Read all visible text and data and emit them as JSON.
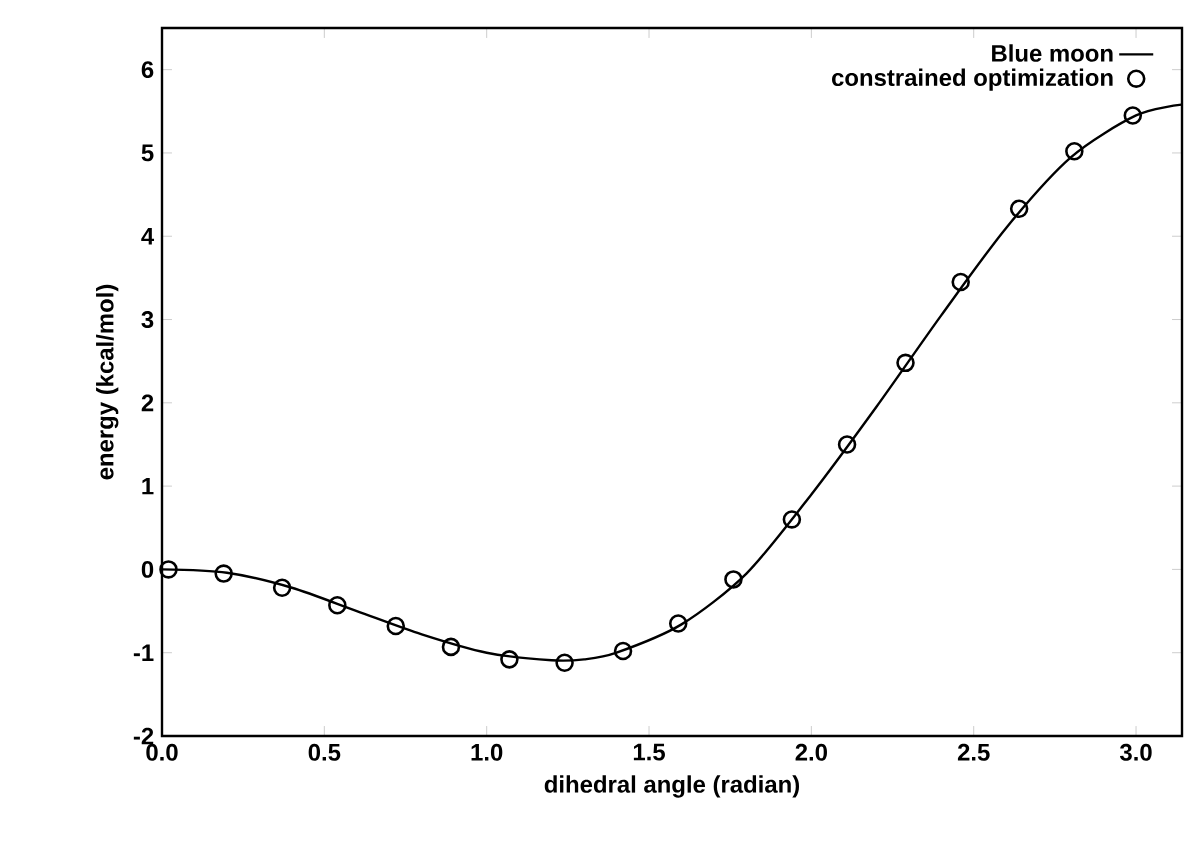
{
  "chart_data": {
    "type": "line",
    "xlabel": "dihedral angle (radian)",
    "ylabel": "energy (kcal/mol)",
    "xlim": [
      0,
      3.1416
    ],
    "ylim": [
      -2,
      6.5
    ],
    "xticks": [
      {
        "value": 0,
        "label": "0.0"
      },
      0.5,
      {
        "value": 1,
        "label": "1.0"
      },
      1.5,
      {
        "value": 2,
        "label": "2.0"
      },
      2.5,
      {
        "value": 3,
        "label": "3.0"
      }
    ],
    "yticks": [
      -2,
      -1,
      0,
      1,
      2,
      3,
      4,
      5,
      6
    ],
    "legend": "top right",
    "grid": false,
    "series": [
      {
        "name": "Blue moon",
        "color": "#000000",
        "marker": "none",
        "line_style": "solid",
        "x": [
          0,
          0.2,
          0.4,
          0.6,
          0.8,
          1.0,
          1.2,
          1.3,
          1.4,
          1.6,
          1.8,
          2.0,
          2.2,
          2.4,
          2.6,
          2.8,
          3.0,
          3.14
        ],
        "values": [
          0,
          -0.04,
          -0.22,
          -0.5,
          -0.78,
          -1.0,
          -1.09,
          -1.08,
          -1.0,
          -0.66,
          -0.05,
          0.9,
          1.95,
          3.05,
          4.1,
          4.95,
          5.45,
          5.58
        ]
      },
      {
        "name": "constrained optimization",
        "type": "scatter",
        "color": "#000000",
        "marker": "circle",
        "x": [
          0.02,
          0.19,
          0.37,
          0.54,
          0.72,
          0.89,
          1.07,
          1.24,
          1.42,
          1.59,
          1.76,
          1.94,
          2.11,
          2.29,
          2.46,
          2.64,
          2.81,
          2.99
        ],
        "values": [
          0,
          -0.05,
          -0.22,
          -0.43,
          -0.68,
          -0.93,
          -1.08,
          -1.12,
          -0.98,
          -0.65,
          -0.12,
          0.6,
          1.5,
          2.48,
          3.45,
          4.33,
          5.02,
          5.45
        ]
      }
    ]
  }
}
